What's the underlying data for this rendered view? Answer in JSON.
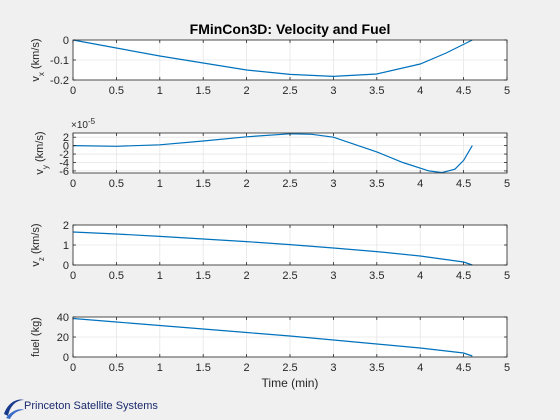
{
  "chart_data": [
    {
      "type": "line",
      "title": "FMinCon3D: Velocity and Fuel",
      "ylabel": "v",
      "ylabel_sub": "x",
      "ylabel_unit": "(km/s)",
      "xlabel": "",
      "xlim": [
        0,
        5
      ],
      "ylim": [
        -0.2,
        0
      ],
      "yticks": [
        "-0.2",
        "-0.1",
        "0"
      ],
      "ytick_values": [
        -0.2,
        -0.1,
        0
      ],
      "xticks": [
        "0",
        "0.5",
        "1",
        "1.5",
        "2",
        "2.5",
        "3",
        "3.5",
        "4",
        "4.5",
        "5"
      ],
      "grid": true,
      "color": "#0072bd",
      "x": [
        0,
        0.5,
        1,
        1.5,
        2,
        2.5,
        3,
        3.5,
        4,
        4.3,
        4.6
      ],
      "y": [
        0,
        -0.04,
        -0.08,
        -0.115,
        -0.15,
        -0.172,
        -0.182,
        -0.17,
        -0.12,
        -0.065,
        0
      ]
    },
    {
      "type": "line",
      "ylabel": "v",
      "ylabel_sub": "y",
      "ylabel_unit": "(km/s)",
      "xlabel": "",
      "multiplier": "×10",
      "multiplier_exp": "-5",
      "xlim": [
        0,
        5
      ],
      "ylim": [
        -6.5,
        3
      ],
      "yticks": [
        "-6",
        "-4",
        "-2",
        "0",
        "2"
      ],
      "ytick_values": [
        -6,
        -4,
        -2,
        0,
        2
      ],
      "xticks": [
        "0",
        "0.5",
        "1",
        "1.5",
        "2",
        "2.5",
        "3",
        "3.5",
        "4",
        "4.5",
        "5"
      ],
      "grid": true,
      "color": "#0072bd",
      "x": [
        0,
        0.5,
        1,
        1.5,
        2,
        2.5,
        2.75,
        3,
        3.5,
        3.8,
        4.1,
        4.25,
        4.4,
        4.5,
        4.6
      ],
      "y": [
        0,
        -0.15,
        0.2,
        1.1,
        2.1,
        2.8,
        2.7,
        2.0,
        -1.5,
        -4.0,
        -6.0,
        -6.4,
        -5.6,
        -3.5,
        0
      ]
    },
    {
      "type": "line",
      "ylabel": "v",
      "ylabel_sub": "z",
      "ylabel_unit": "(km/s)",
      "xlabel": "",
      "xlim": [
        0,
        5
      ],
      "ylim": [
        0,
        2
      ],
      "yticks": [
        "0",
        "1",
        "2"
      ],
      "ytick_values": [
        0,
        1,
        2
      ],
      "xticks": [
        "0",
        "0.5",
        "1",
        "1.5",
        "2",
        "2.5",
        "3",
        "3.5",
        "4",
        "4.5",
        "5"
      ],
      "grid": true,
      "color": "#0072bd",
      "x": [
        0,
        0.5,
        1,
        1.5,
        2,
        2.5,
        3,
        3.5,
        4,
        4.5,
        4.6
      ],
      "y": [
        1.65,
        1.55,
        1.43,
        1.3,
        1.17,
        1.02,
        0.85,
        0.67,
        0.45,
        0.15,
        0
      ]
    },
    {
      "type": "line",
      "ylabel": "fuel (kg)",
      "ylabel_sub": "",
      "ylabel_unit": "",
      "xlabel": "Time (min)",
      "xlim": [
        0,
        5
      ],
      "ylim": [
        0,
        40
      ],
      "yticks": [
        "0",
        "20",
        "40"
      ],
      "ytick_values": [
        0,
        20,
        40
      ],
      "xticks": [
        "0",
        "0.5",
        "1",
        "1.5",
        "2",
        "2.5",
        "3",
        "3.5",
        "4",
        "4.5",
        "5"
      ],
      "grid": true,
      "color": "#0072bd",
      "x": [
        0,
        0.5,
        1,
        1.5,
        2,
        2.5,
        3,
        3.5,
        4,
        4.5,
        4.6
      ],
      "y": [
        38.5,
        35,
        31.5,
        28,
        24.5,
        21,
        17,
        13,
        9,
        4,
        1
      ]
    }
  ],
  "logo": {
    "text": "Princeton Satellite Systems",
    "color": "#1a2a6c"
  }
}
